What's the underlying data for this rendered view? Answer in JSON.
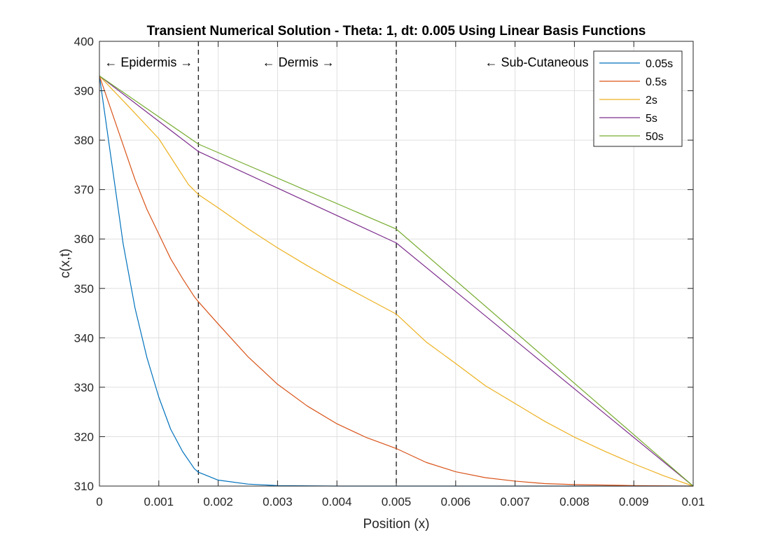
{
  "chart_data": {
    "type": "line",
    "title": "Transient Numerical Solution - Theta: 1, dt: 0.005 Using Linear Basis Functions",
    "xlabel": "Position (x)",
    "ylabel": "c(x,t)",
    "xlim": [
      0,
      0.01
    ],
    "ylim": [
      310,
      400
    ],
    "xticks": [
      0,
      0.001,
      0.002,
      0.003,
      0.004,
      0.005,
      0.006,
      0.007,
      0.008,
      0.009,
      0.01
    ],
    "xtick_labels": [
      "0",
      "0.001",
      "0.002",
      "0.003",
      "0.004",
      "0.005",
      "0.006",
      "0.007",
      "0.008",
      "0.009",
      "0.01"
    ],
    "yticks": [
      310,
      320,
      330,
      340,
      350,
      360,
      370,
      380,
      390,
      400
    ],
    "ytick_labels": [
      "310",
      "320",
      "330",
      "340",
      "350",
      "360",
      "370",
      "380",
      "390",
      "400"
    ],
    "grid": true,
    "legend_position": "top-right",
    "boundaries": [
      0.001667,
      0.005
    ],
    "regions": [
      {
        "label": "Epidermis",
        "x_center": 0.00083
      },
      {
        "label": "Dermis",
        "x_center": 0.00335
      },
      {
        "label": "Sub-Cutaneous",
        "x_center": 0.0075
      }
    ],
    "series": [
      {
        "name": "0.05s",
        "color": "#0072BD",
        "x": [
          0,
          0.0002,
          0.0004,
          0.0006,
          0.0008,
          0.001,
          0.0012,
          0.0014,
          0.0016,
          0.001667,
          0.002,
          0.0025,
          0.003,
          0.004,
          0.005,
          0.006,
          0.007,
          0.008,
          0.009,
          0.01
        ],
        "y": [
          393,
          376,
          359,
          346,
          336,
          328,
          321.5,
          317,
          313.5,
          312.8,
          311.2,
          310.4,
          310.1,
          310,
          310,
          310,
          310,
          310,
          310,
          310
        ]
      },
      {
        "name": "0.5s",
        "color": "#D95319",
        "x": [
          0,
          0.0002,
          0.0004,
          0.0006,
          0.0008,
          0.001,
          0.0012,
          0.0014,
          0.0016,
          0.001667,
          0.002,
          0.0025,
          0.003,
          0.0035,
          0.004,
          0.0045,
          0.005,
          0.0055,
          0.006,
          0.0065,
          0.007,
          0.0075,
          0.008,
          0.009,
          0.01
        ],
        "y": [
          393,
          386,
          379,
          372,
          366,
          361,
          356,
          352,
          348.3,
          347.3,
          342.8,
          336.2,
          330.6,
          326.2,
          322.6,
          319.8,
          317.6,
          314.8,
          312.9,
          311.7,
          311,
          310.5,
          310.3,
          310.1,
          310
        ]
      },
      {
        "name": "2s",
        "color": "#EDB120",
        "x": [
          0,
          0.0005,
          0.001,
          0.0015,
          0.001667,
          0.002,
          0.0025,
          0.003,
          0.0035,
          0.004,
          0.0045,
          0.005,
          0.0055,
          0.006,
          0.0065,
          0.007,
          0.0075,
          0.008,
          0.0085,
          0.009,
          0.0095,
          0.01
        ],
        "y": [
          393,
          386.7,
          380.3,
          371,
          369,
          366.3,
          362.1,
          358.2,
          354.6,
          351.2,
          348,
          344.8,
          339.2,
          334.8,
          330.3,
          326.7,
          323.1,
          319.9,
          317.1,
          314.5,
          312.1,
          310
        ]
      },
      {
        "name": "5s",
        "color": "#7E2F8E",
        "x": [
          0,
          0.001667,
          0.005,
          0.01
        ],
        "y": [
          393,
          377.7,
          359.2,
          310
        ]
      },
      {
        "name": "50s",
        "color": "#77AC30",
        "x": [
          0,
          0.001667,
          0.005,
          0.01
        ],
        "y": [
          393,
          379.2,
          362,
          310
        ]
      }
    ]
  },
  "arrows": {
    "left": "←",
    "right": "→"
  }
}
